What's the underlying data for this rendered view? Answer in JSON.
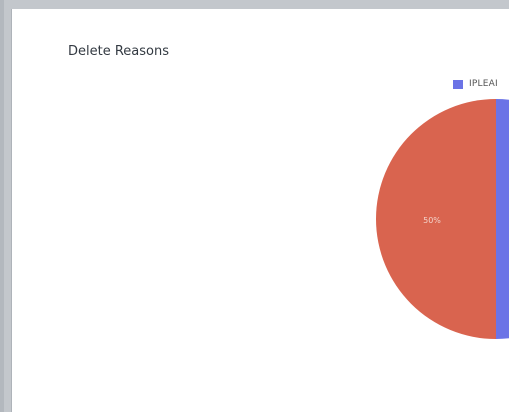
{
  "panel": {
    "title": "Delete Reasons"
  },
  "legend": {
    "items": [
      {
        "label": "IPLEAI",
        "color": "#6b73e6"
      }
    ]
  },
  "chart_data": {
    "type": "pie",
    "title": "Delete Reasons",
    "slices": [
      {
        "label": "IPLEAI",
        "value": 50,
        "color": "#6b73e6"
      },
      {
        "label": "",
        "value": 50,
        "color": "#d9644f"
      }
    ],
    "data_labels": [
      "50%"
    ]
  }
}
